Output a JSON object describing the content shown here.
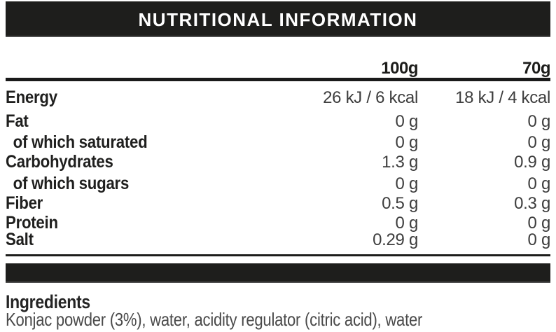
{
  "title": "NUTRITIONAL INFORMATION",
  "table": {
    "columns": [
      "100g",
      "70g"
    ],
    "rows": [
      {
        "label": "Energy",
        "indent": false,
        "per_100g": "26 kJ / 6 kcal",
        "per_70g": "18 kJ / 4 kcal"
      },
      {
        "label": "Fat",
        "indent": false,
        "per_100g": "0 g",
        "per_70g": "0 g"
      },
      {
        "label": "of which saturated",
        "indent": true,
        "per_100g": "0 g",
        "per_70g": "0 g"
      },
      {
        "label": "Carbohydrates",
        "indent": false,
        "per_100g": "1.3 g",
        "per_70g": "0.9 g"
      },
      {
        "label": "of which sugars",
        "indent": true,
        "per_100g": "0 g",
        "per_70g": "0 g"
      },
      {
        "label": "Fiber",
        "indent": false,
        "per_100g": "0.5 g",
        "per_70g": "0.3 g"
      },
      {
        "label": "Protein",
        "indent": false,
        "per_100g": "0 g",
        "per_70g": "0 g"
      },
      {
        "label": "Salt",
        "indent": false,
        "per_100g": "0.29 g",
        "per_70g": "0 g"
      }
    ]
  },
  "ingredients": {
    "heading": "Ingredients",
    "text": "Konjac powder (3%), water, acidity regulator (citric acid), water"
  },
  "colors": {
    "bar_background": "#1e1e1c",
    "text": "#1f1f1e",
    "value_text": "#3d3d3d",
    "ingredients_text": "#4a4a4a"
  }
}
